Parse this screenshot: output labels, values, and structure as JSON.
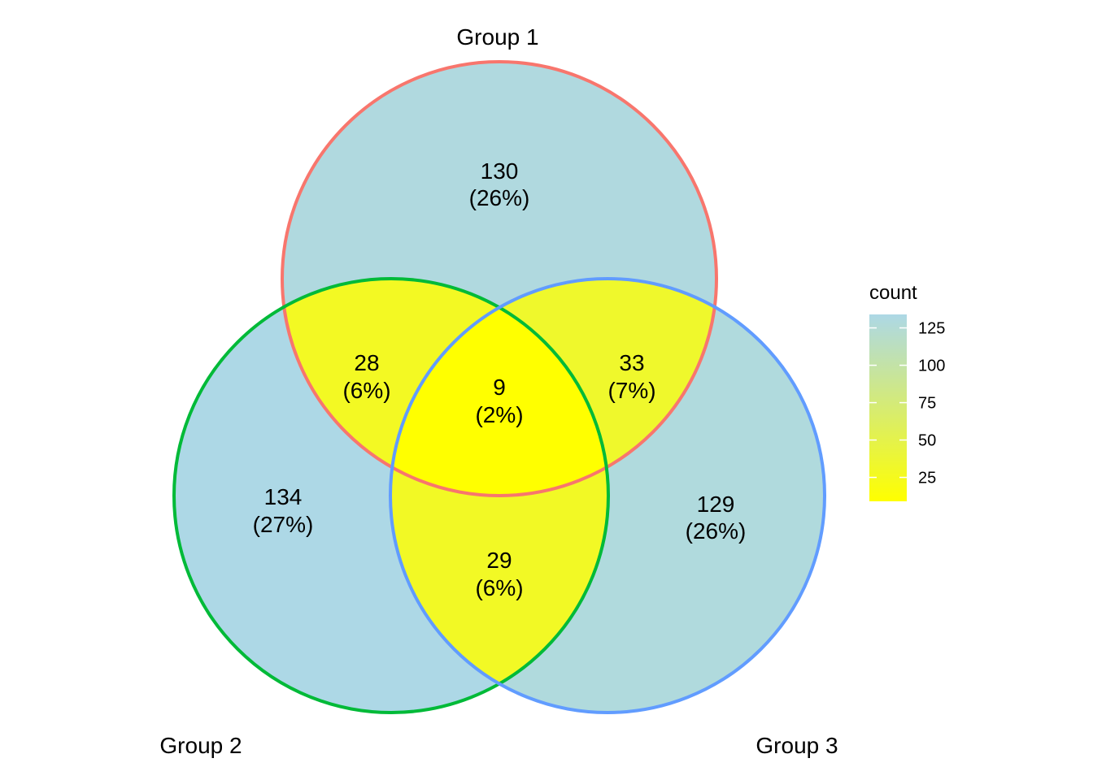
{
  "chart_data": {
    "type": "venn",
    "sets": [
      {
        "name": "Group 1",
        "color": "#F8766D"
      },
      {
        "name": "Group 2",
        "color": "#00BA38"
      },
      {
        "name": "Group 3",
        "color": "#619CFF"
      }
    ],
    "regions": [
      {
        "id": "g1_only",
        "sets": [
          "Group 1"
        ],
        "count": "130",
        "percent": "(26%)",
        "value": 130
      },
      {
        "id": "g2_only",
        "sets": [
          "Group 2"
        ],
        "count": "134",
        "percent": "(27%)",
        "value": 134
      },
      {
        "id": "g3_only",
        "sets": [
          "Group 3"
        ],
        "count": "129",
        "percent": "(26%)",
        "value": 129
      },
      {
        "id": "g1_g2",
        "sets": [
          "Group 1",
          "Group 2"
        ],
        "count": "28",
        "percent": "(6%)",
        "value": 28
      },
      {
        "id": "g1_g3",
        "sets": [
          "Group 1",
          "Group 3"
        ],
        "count": "33",
        "percent": "(7%)",
        "value": 33
      },
      {
        "id": "g2_g3",
        "sets": [
          "Group 2",
          "Group 3"
        ],
        "count": "29",
        "percent": "(6%)",
        "value": 29
      },
      {
        "id": "all",
        "sets": [
          "Group 1",
          "Group 2",
          "Group 3"
        ],
        "count": "9",
        "percent": "(2%)",
        "value": 9
      }
    ],
    "legend": {
      "title": "count",
      "placement": "right",
      "scale_min": 9,
      "scale_max": 134,
      "ticks": [
        125,
        100,
        75,
        50,
        25
      ],
      "low_color": "#FFFF00",
      "high_color": "#ADD8E6"
    }
  }
}
